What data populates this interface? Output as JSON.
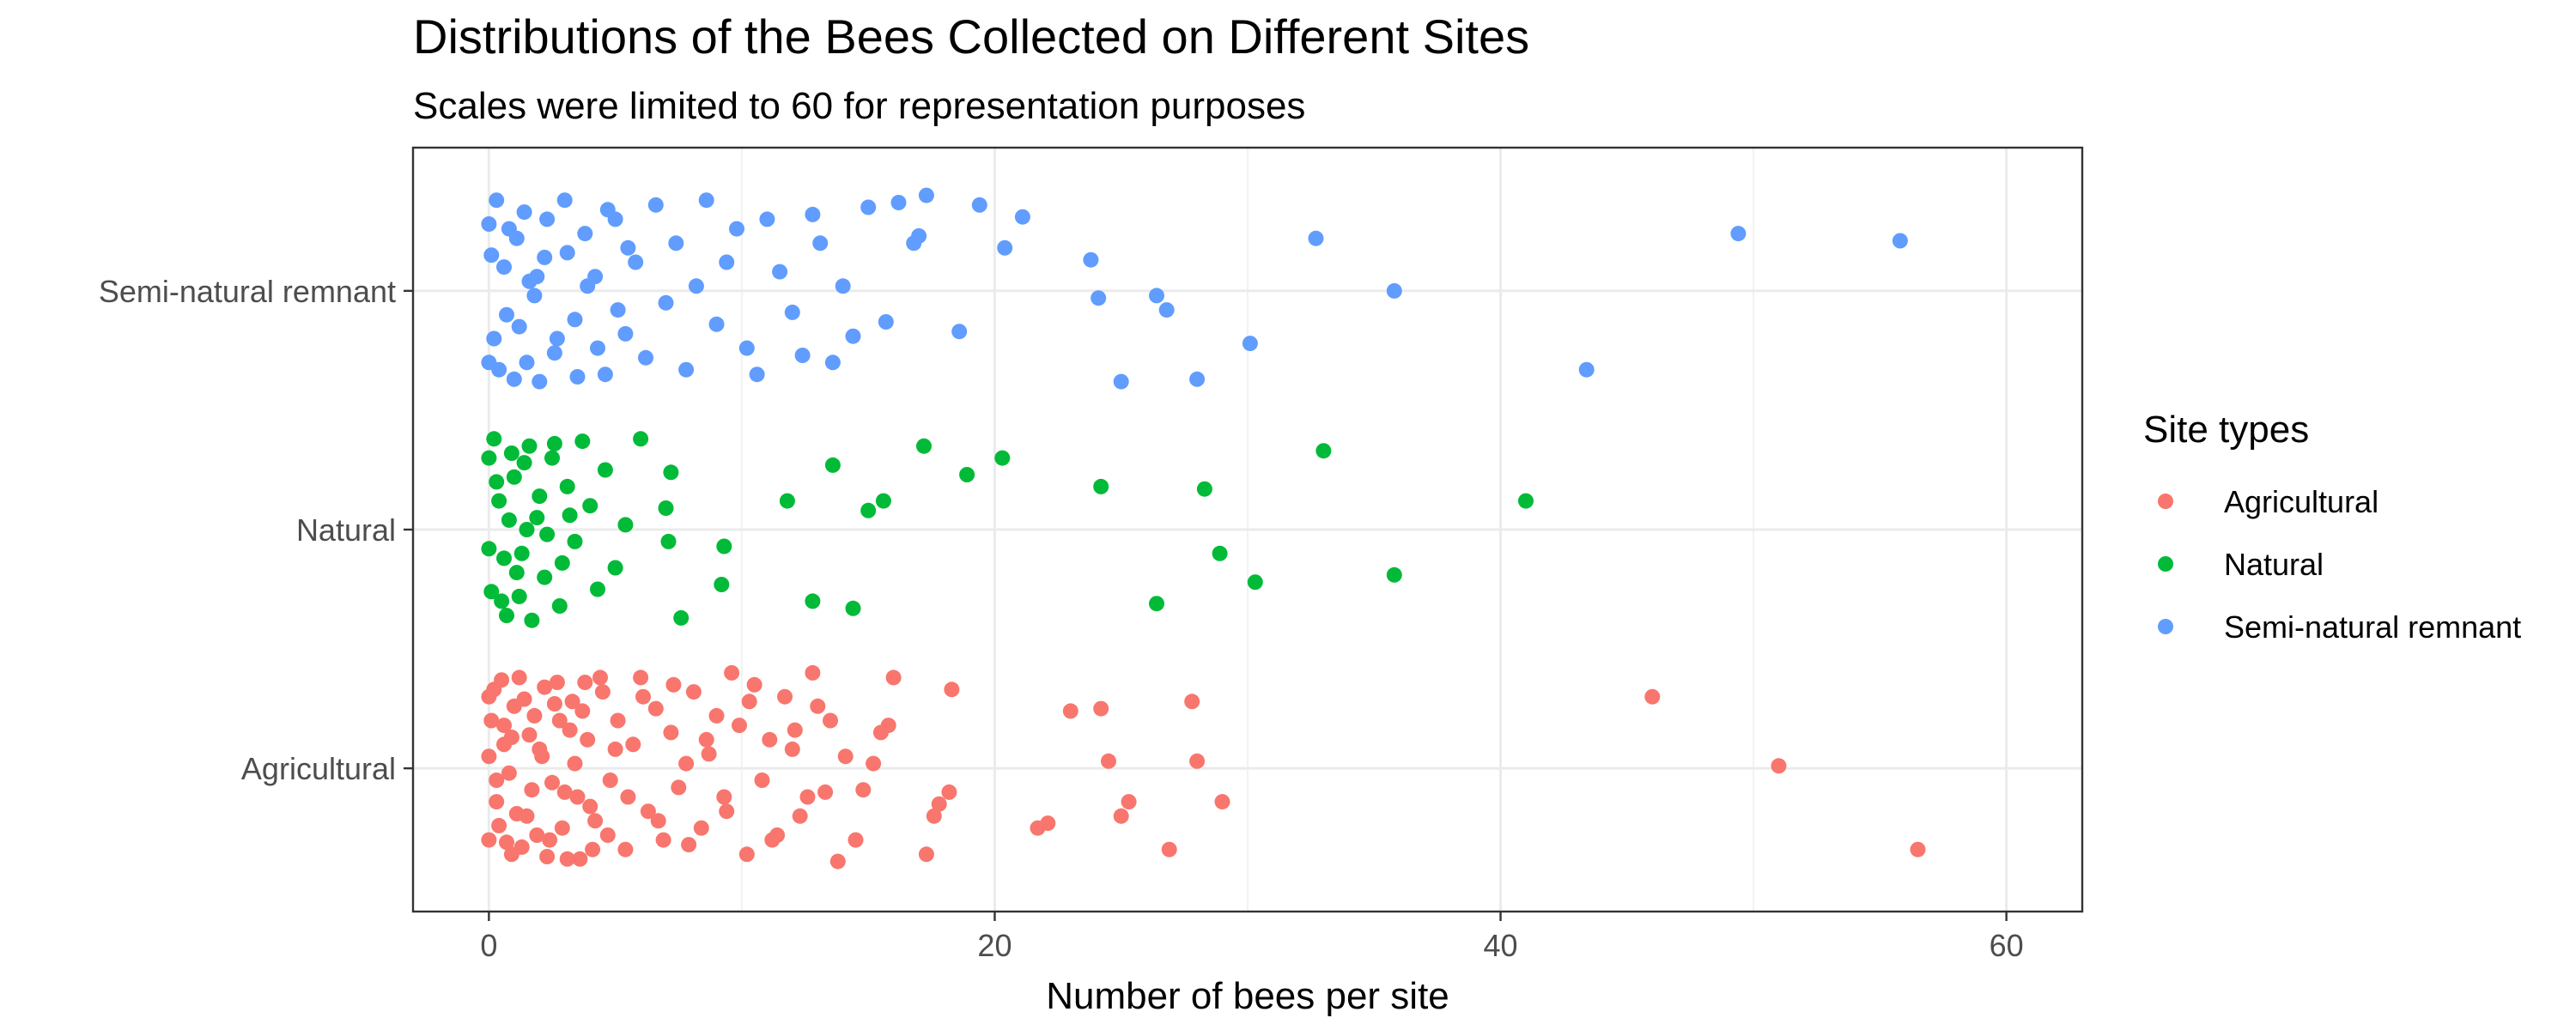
{
  "chart_data": {
    "type": "scatter",
    "title": "Distributions of the Bees Collected on Different Sites",
    "subtitle": "Scales were limited to 60 for representation purposes",
    "xlabel": "Number of bees per site",
    "ylabel": "",
    "xlim": [
      -3,
      63
    ],
    "x_ticks": [
      0,
      20,
      40,
      60
    ],
    "categories": [
      "Agricultural",
      "Natural",
      "Semi-natural remnant"
    ],
    "jitter": "vertical jitter within each category band",
    "grid": true,
    "legend": {
      "title": "Site types",
      "position": "right",
      "entries": [
        "Agricultural",
        "Natural",
        "Semi-natural remnant"
      ]
    },
    "series": [
      {
        "name": "Agricultural",
        "color": "#F8766D",
        "category": "Agricultural",
        "points": [
          [
            46.0,
            0.3
          ],
          [
            51.0,
            0.01
          ],
          [
            56.5,
            -0.34
          ],
          [
            27.8,
            0.28
          ],
          [
            28.0,
            0.03
          ],
          [
            26.9,
            -0.34
          ],
          [
            29.0,
            -0.14
          ],
          [
            24.2,
            0.25
          ],
          [
            24.5,
            0.03
          ],
          [
            23.0,
            0.24
          ],
          [
            25.0,
            -0.2
          ],
          [
            25.3,
            -0.14
          ],
          [
            22.1,
            -0.23
          ],
          [
            21.7,
            -0.25
          ],
          [
            18.3,
            0.33
          ],
          [
            18.2,
            -0.1
          ],
          [
            17.8,
            -0.15
          ],
          [
            17.6,
            -0.2
          ],
          [
            17.3,
            -0.36
          ],
          [
            16.0,
            0.38
          ],
          [
            15.8,
            0.18
          ],
          [
            15.5,
            0.15
          ],
          [
            15.2,
            0.02
          ],
          [
            14.8,
            -0.09
          ],
          [
            14.5,
            -0.3
          ],
          [
            14.1,
            0.05
          ],
          [
            13.8,
            -0.39
          ],
          [
            13.5,
            0.2
          ],
          [
            13.0,
            0.26
          ],
          [
            12.8,
            0.4
          ],
          [
            12.6,
            -0.12
          ],
          [
            12.3,
            -0.2
          ],
          [
            12.0,
            0.08
          ],
          [
            11.7,
            0.3
          ],
          [
            11.4,
            -0.28
          ],
          [
            11.1,
            0.12
          ],
          [
            10.8,
            -0.05
          ],
          [
            10.5,
            0.35
          ],
          [
            10.2,
            -0.36
          ],
          [
            9.9,
            0.18
          ],
          [
            9.6,
            0.4
          ],
          [
            9.3,
            -0.12
          ],
          [
            9.0,
            0.22
          ],
          [
            8.7,
            0.06
          ],
          [
            8.4,
            -0.25
          ],
          [
            8.1,
            0.32
          ],
          [
            7.8,
            0.02
          ],
          [
            7.5,
            -0.08
          ],
          [
            7.2,
            0.15
          ],
          [
            6.9,
            -0.3
          ],
          [
            6.6,
            0.25
          ],
          [
            6.3,
            -0.18
          ],
          [
            6.0,
            0.38
          ],
          [
            5.7,
            0.1
          ],
          [
            5.4,
            -0.34
          ],
          [
            5.1,
            0.2
          ],
          [
            4.8,
            -0.05
          ],
          [
            4.5,
            0.32
          ],
          [
            4.2,
            -0.22
          ],
          [
            3.9,
            0.12
          ],
          [
            3.6,
            -0.38
          ],
          [
            3.3,
            0.28
          ],
          [
            3.0,
            -0.1
          ],
          [
            2.7,
            0.36
          ],
          [
            2.4,
            -0.3
          ],
          [
            2.1,
            0.05
          ],
          [
            1.8,
            0.22
          ],
          [
            1.5,
            -0.2
          ],
          [
            1.2,
            0.38
          ],
          [
            0.9,
            -0.36
          ],
          [
            0.6,
            0.1
          ],
          [
            0.3,
            -0.14
          ],
          [
            0.0,
            0.3
          ],
          [
            0.0,
            -0.3
          ],
          [
            0.0,
            0.05
          ],
          [
            0.2,
            0.33
          ],
          [
            0.4,
            -0.24
          ],
          [
            0.6,
            0.18
          ],
          [
            0.8,
            -0.02
          ],
          [
            1.0,
            0.26
          ],
          [
            1.3,
            -0.33
          ],
          [
            1.6,
            0.14
          ],
          [
            1.9,
            -0.28
          ],
          [
            2.2,
            0.34
          ],
          [
            2.5,
            -0.06
          ],
          [
            2.8,
            0.2
          ],
          [
            3.1,
            -0.38
          ],
          [
            3.4,
            0.02
          ],
          [
            3.7,
            0.24
          ],
          [
            4.0,
            -0.16
          ],
          [
            4.4,
            0.38
          ],
          [
            4.7,
            -0.28
          ],
          [
            5.0,
            0.08
          ],
          [
            5.5,
            -0.12
          ],
          [
            6.1,
            0.3
          ],
          [
            6.7,
            -0.22
          ],
          [
            7.3,
            0.35
          ],
          [
            7.9,
            -0.32
          ],
          [
            8.6,
            0.12
          ],
          [
            9.4,
            -0.18
          ],
          [
            10.3,
            0.28
          ],
          [
            11.2,
            -0.3
          ],
          [
            12.1,
            0.16
          ],
          [
            13.3,
            -0.1
          ],
          [
            0.1,
            0.2
          ],
          [
            0.3,
            -0.05
          ],
          [
            0.5,
            0.37
          ],
          [
            0.7,
            -0.31
          ],
          [
            0.9,
            0.13
          ],
          [
            1.1,
            -0.19
          ],
          [
            1.4,
            0.29
          ],
          [
            1.7,
            -0.09
          ],
          [
            2.0,
            0.08
          ],
          [
            2.3,
            -0.37
          ],
          [
            2.6,
            0.27
          ],
          [
            2.9,
            -0.25
          ],
          [
            3.2,
            0.16
          ],
          [
            3.5,
            -0.12
          ],
          [
            3.8,
            0.36
          ],
          [
            4.1,
            -0.34
          ]
        ]
      },
      {
        "name": "Natural",
        "color": "#00BA38",
        "category": "Natural",
        "points": [
          [
            41.0,
            0.12
          ],
          [
            35.8,
            -0.19
          ],
          [
            33.0,
            0.33
          ],
          [
            30.3,
            -0.22
          ],
          [
            28.9,
            -0.1
          ],
          [
            28.3,
            0.17
          ],
          [
            26.4,
            -0.31
          ],
          [
            24.2,
            0.18
          ],
          [
            20.3,
            0.3
          ],
          [
            18.9,
            0.23
          ],
          [
            17.2,
            0.35
          ],
          [
            15.6,
            0.12
          ],
          [
            15.0,
            0.08
          ],
          [
            14.4,
            -0.33
          ],
          [
            13.6,
            0.27
          ],
          [
            12.8,
            -0.3
          ],
          [
            11.8,
            0.12
          ],
          [
            9.3,
            -0.07
          ],
          [
            9.2,
            -0.23
          ],
          [
            7.6,
            -0.37
          ],
          [
            7.1,
            -0.05
          ],
          [
            7.0,
            0.09
          ],
          [
            7.2,
            0.24
          ],
          [
            6.0,
            0.38
          ],
          [
            5.4,
            0.02
          ],
          [
            5.0,
            -0.16
          ],
          [
            4.6,
            0.25
          ],
          [
            4.3,
            -0.25
          ],
          [
            4.0,
            0.1
          ],
          [
            3.7,
            0.37
          ],
          [
            3.4,
            -0.05
          ],
          [
            3.1,
            0.18
          ],
          [
            2.8,
            -0.32
          ],
          [
            2.5,
            0.3
          ],
          [
            2.2,
            -0.2
          ],
          [
            1.9,
            0.05
          ],
          [
            1.6,
            0.35
          ],
          [
            1.3,
            -0.1
          ],
          [
            1.0,
            0.22
          ],
          [
            0.7,
            -0.36
          ],
          [
            0.4,
            0.12
          ],
          [
            0.1,
            -0.26
          ],
          [
            0.0,
            0.3
          ],
          [
            0.0,
            -0.08
          ],
          [
            0.2,
            0.38
          ],
          [
            0.5,
            -0.3
          ],
          [
            0.8,
            0.04
          ],
          [
            1.1,
            -0.18
          ],
          [
            1.4,
            0.28
          ],
          [
            1.7,
            -0.38
          ],
          [
            2.0,
            0.14
          ],
          [
            2.3,
            -0.02
          ],
          [
            2.6,
            0.36
          ],
          [
            2.9,
            -0.14
          ],
          [
            3.2,
            0.06
          ],
          [
            0.3,
            0.2
          ],
          [
            0.6,
            -0.12
          ],
          [
            0.9,
            0.32
          ],
          [
            1.2,
            -0.28
          ],
          [
            1.5,
            0.0
          ]
        ]
      },
      {
        "name": "Semi-natural remnant",
        "color": "#619CFF",
        "category": "Semi-natural remnant",
        "points": [
          [
            55.8,
            0.21
          ],
          [
            49.4,
            0.24
          ],
          [
            43.4,
            -0.33
          ],
          [
            35.8,
            0.0
          ],
          [
            32.7,
            0.22
          ],
          [
            30.1,
            -0.22
          ],
          [
            28.0,
            -0.37
          ],
          [
            26.8,
            -0.08
          ],
          [
            26.4,
            -0.02
          ],
          [
            25.0,
            -0.38
          ],
          [
            24.1,
            -0.03
          ],
          [
            23.8,
            0.13
          ],
          [
            21.1,
            0.31
          ],
          [
            20.4,
            0.18
          ],
          [
            19.4,
            0.36
          ],
          [
            18.6,
            -0.17
          ],
          [
            17.3,
            0.4
          ],
          [
            17.0,
            0.23
          ],
          [
            16.8,
            0.2
          ],
          [
            16.2,
            0.37
          ],
          [
            15.7,
            -0.13
          ],
          [
            15.0,
            0.35
          ],
          [
            14.4,
            -0.19
          ],
          [
            14.0,
            0.02
          ],
          [
            13.6,
            -0.3
          ],
          [
            13.1,
            0.2
          ],
          [
            12.8,
            0.32
          ],
          [
            12.4,
            -0.27
          ],
          [
            12.0,
            -0.09
          ],
          [
            11.5,
            0.08
          ],
          [
            11.0,
            0.3
          ],
          [
            10.6,
            -0.35
          ],
          [
            10.2,
            -0.24
          ],
          [
            9.8,
            0.26
          ],
          [
            9.4,
            0.12
          ],
          [
            9.0,
            -0.14
          ],
          [
            8.6,
            0.38
          ],
          [
            8.2,
            0.02
          ],
          [
            7.8,
            -0.33
          ],
          [
            7.4,
            0.2
          ],
          [
            7.0,
            -0.05
          ],
          [
            6.6,
            0.36
          ],
          [
            6.2,
            -0.28
          ],
          [
            5.8,
            0.12
          ],
          [
            5.4,
            -0.18
          ],
          [
            5.0,
            0.3
          ],
          [
            4.6,
            -0.35
          ],
          [
            4.2,
            0.06
          ],
          [
            3.8,
            0.24
          ],
          [
            3.4,
            -0.12
          ],
          [
            3.0,
            0.38
          ],
          [
            2.6,
            -0.26
          ],
          [
            2.2,
            0.14
          ],
          [
            1.8,
            -0.02
          ],
          [
            1.4,
            0.33
          ],
          [
            1.0,
            -0.37
          ],
          [
            0.6,
            0.1
          ],
          [
            0.2,
            -0.2
          ],
          [
            0.0,
            0.28
          ],
          [
            0.0,
            -0.3
          ],
          [
            0.3,
            0.38
          ],
          [
            0.7,
            -0.1
          ],
          [
            1.1,
            0.22
          ],
          [
            1.5,
            -0.3
          ],
          [
            1.9,
            0.06
          ],
          [
            2.3,
            0.3
          ],
          [
            2.7,
            -0.2
          ],
          [
            3.1,
            0.16
          ],
          [
            3.5,
            -0.36
          ],
          [
            3.9,
            0.02
          ],
          [
            4.3,
            -0.24
          ],
          [
            4.7,
            0.34
          ],
          [
            5.1,
            -0.08
          ],
          [
            5.5,
            0.18
          ],
          [
            0.1,
            0.15
          ],
          [
            0.4,
            -0.33
          ],
          [
            0.8,
            0.26
          ],
          [
            1.2,
            -0.15
          ],
          [
            1.6,
            0.04
          ],
          [
            2.0,
            -0.38
          ]
        ]
      }
    ]
  }
}
